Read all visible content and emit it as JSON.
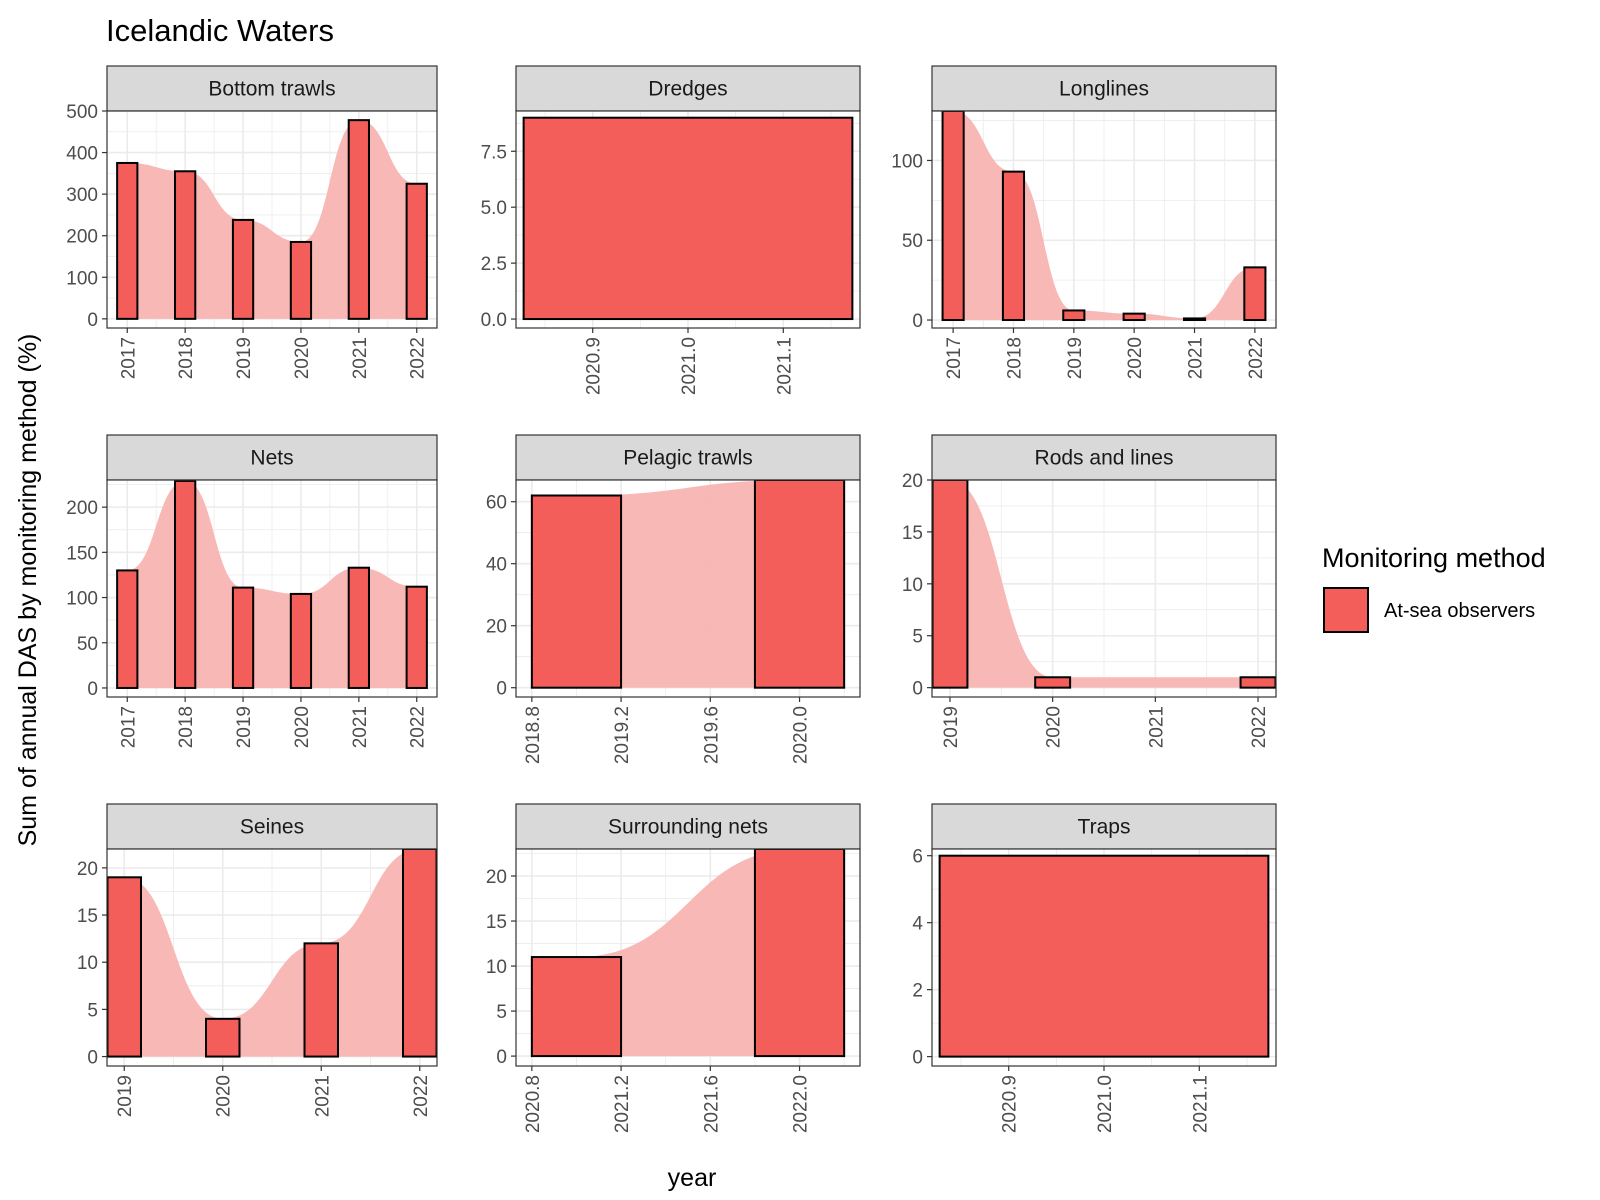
{
  "chart_data": {
    "type": "bar",
    "title": "Icelandic Waters",
    "xlabel": "year",
    "ylabel": "Sum of annual DAS by monitoring method (%)",
    "legend": {
      "title": "Monitoring method",
      "position": "right",
      "entries": [
        {
          "label": "At-sea observers",
          "color": "#F35E5A"
        }
      ]
    },
    "colors": {
      "bar_fill": "#F35E5A",
      "area_fill": "#F8B4B2",
      "bar_outline": "#000000",
      "panel_grid": "#EBEBEB",
      "strip_fill": "#D9D9D9"
    },
    "grid": true,
    "facets": [
      {
        "name": "Bottom trawls",
        "xlim": [
          2016.65,
          2022.35
        ],
        "ylim": [
          -22,
          500
        ],
        "xticks": [
          2017,
          2018,
          2019,
          2020,
          2021,
          2022
        ],
        "yticks": [
          0,
          100,
          200,
          300,
          400,
          500
        ],
        "bar_width": 0.35,
        "x": [
          2017,
          2018,
          2019,
          2020,
          2021,
          2022
        ],
        "values": [
          375,
          355,
          238,
          185,
          478,
          325
        ]
      },
      {
        "name": "Dredges",
        "xlim": [
          2020.8195,
          2021.1805
        ],
        "ylim": [
          -0.4,
          9.3
        ],
        "xticks": [
          2020.9,
          2021.0,
          2021.1
        ],
        "yticks": [
          0.0,
          2.5,
          5.0,
          7.5
        ],
        "bar_width": 0.345,
        "x": [
          2021
        ],
        "values": [
          9
        ]
      },
      {
        "name": "Longlines",
        "xlim": [
          2016.65,
          2022.35
        ],
        "ylim": [
          -5,
          131
        ],
        "xticks": [
          2017,
          2018,
          2019,
          2020,
          2021,
          2022
        ],
        "yticks": [
          0,
          50,
          100
        ],
        "bar_width": 0.35,
        "x": [
          2017,
          2018,
          2019,
          2020,
          2021,
          2022
        ],
        "values": [
          131,
          93,
          6,
          4,
          1,
          33
        ]
      },
      {
        "name": "Nets",
        "xlim": [
          2016.65,
          2022.35
        ],
        "ylim": [
          -10,
          230
        ],
        "xticks": [
          2017,
          2018,
          2019,
          2020,
          2021,
          2022
        ],
        "yticks": [
          0,
          50,
          100,
          150,
          200
        ],
        "bar_width": 0.35,
        "x": [
          2017,
          2018,
          2019,
          2020,
          2021,
          2022
        ],
        "values": [
          130,
          229,
          111,
          104,
          133,
          112
        ]
      },
      {
        "name": "Pelagic trawls",
        "xlim": [
          2018.729,
          2020.271
        ],
        "ylim": [
          -3,
          67
        ],
        "xticks": [
          2018.8,
          2019.2,
          2019.6,
          2020.0
        ],
        "yticks": [
          0,
          20,
          40,
          60
        ],
        "bar_width": 0.4,
        "x": [
          2019,
          2020
        ],
        "values": [
          62,
          67
        ]
      },
      {
        "name": "Rods and lines",
        "xlim": [
          2018.825,
          2022.175
        ],
        "ylim": [
          -0.9,
          20
        ],
        "xticks": [
          2019,
          2020,
          2021,
          2022
        ],
        "yticks": [
          0,
          5,
          10,
          15,
          20
        ],
        "bar_width": 0.34,
        "x": [
          2019,
          2020,
          2022
        ],
        "values": [
          20,
          1,
          1
        ]
      },
      {
        "name": "Seines",
        "xlim": [
          2018.825,
          2022.175
        ],
        "ylim": [
          -1,
          22
        ],
        "xticks": [
          2019,
          2020,
          2021,
          2022
        ],
        "yticks": [
          0,
          5,
          10,
          15,
          20
        ],
        "bar_width": 0.34,
        "x": [
          2019,
          2020,
          2021,
          2022
        ],
        "values": [
          19,
          4,
          12,
          22
        ]
      },
      {
        "name": "Surrounding nets",
        "xlim": [
          2020.729,
          2022.271
        ],
        "ylim": [
          -1.1,
          23
        ],
        "xticks": [
          2020.8,
          2021.2,
          2021.6,
          2022.0
        ],
        "yticks": [
          0,
          5,
          10,
          15,
          20
        ],
        "bar_width": 0.4,
        "x": [
          2021,
          2022
        ],
        "values": [
          11,
          23
        ]
      },
      {
        "name": "Traps",
        "xlim": [
          2020.8195,
          2021.1805
        ],
        "ylim": [
          -0.28,
          6.2
        ],
        "xticks": [
          2020.9,
          2021.0,
          2021.1
        ],
        "yticks": [
          0,
          2,
          4,
          6
        ],
        "bar_width": 0.345,
        "x": [
          2021
        ],
        "values": [
          6
        ]
      }
    ]
  }
}
